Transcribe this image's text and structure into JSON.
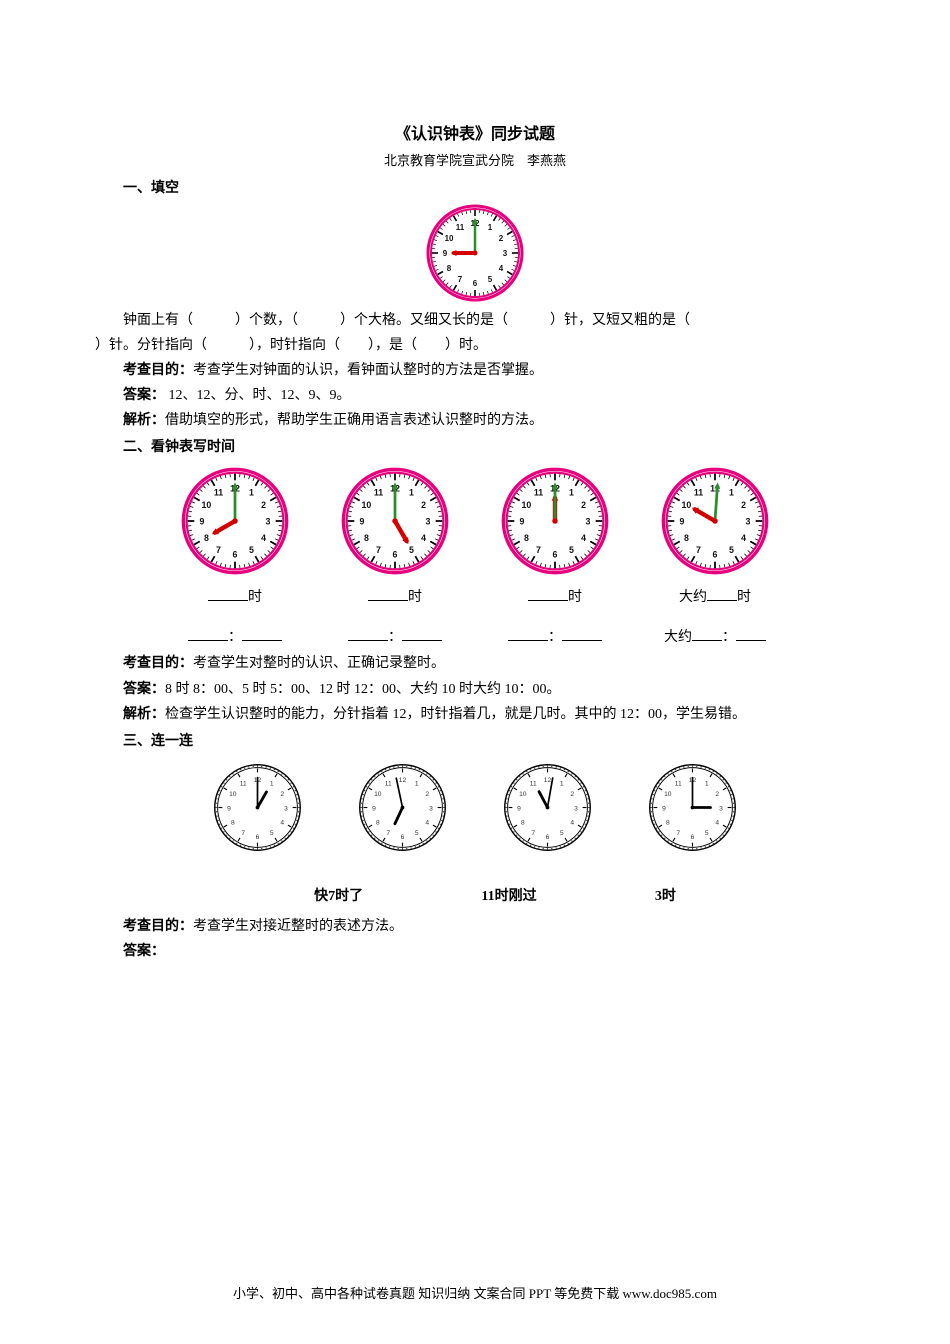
{
  "title": "《认识钟表》同步试题",
  "subtitle": "北京教育学院宣武分院　李燕燕",
  "s1": {
    "heading": "一、填空",
    "clock": {
      "type": "analog-clock",
      "hour_hand_angle": 270,
      "minute_hand_angle": 0,
      "face_border": "#e6007e",
      "hand_hour_color": "#d40000",
      "hand_min_color": "#2a8f2a",
      "tick_color": "#000000",
      "number_color": "#111111",
      "bg": "#ffffff",
      "size": 100
    },
    "q_line1": "钟面上有（　　　）个数，（　　　）个大格。又细又长的是（　　　）针，又短又粗的是（",
    "q_line2": "）针。分针指向（　　　），时针指向（　　），是（　　）时。",
    "objective_label": "考查目的：",
    "objective": "考查学生对钟面的认识，看钟面认整时的方法是否掌握。",
    "answer_label": "答案：",
    "answer": " 12、12、分、时、12、9、9。",
    "analysis_label": "解析：",
    "analysis": "借助填空的形式，帮助学生正确用语言表述认识整时的方法。"
  },
  "s2": {
    "heading": "二、看钟表写时间",
    "clocks": [
      {
        "hour_hand_angle": 240,
        "minute_hand_angle": 0,
        "label1_left": "",
        "label1_right": "时",
        "label2_mid": "：",
        "label2_left": "",
        "label2_right": ""
      },
      {
        "hour_hand_angle": 150,
        "minute_hand_angle": 0,
        "label1_left": "",
        "label1_right": "时",
        "label2_mid": "：",
        "label2_left": "",
        "label2_right": ""
      },
      {
        "hour_hand_angle": 0,
        "minute_hand_angle": 0,
        "label1_left": "",
        "label1_right": "时",
        "label2_mid": "：",
        "label2_left": "",
        "label2_right": ""
      },
      {
        "hour_hand_angle": 300,
        "minute_hand_angle": 4,
        "label1_prefix": "大约",
        "label1_right": "时",
        "label2_prefix": "大约",
        "label2_mid": "：",
        "label2_right": ""
      }
    ],
    "clock_style": {
      "face_border": "#e6007e",
      "hand_hour_color": "#d40000",
      "hand_min_color": "#2a8f2a",
      "tick_color": "#000000",
      "number_color": "#111111",
      "bg": "#ffffff",
      "size": 110
    },
    "objective_label": "考查目的：",
    "objective": "考查学生对整时的认识、正确记录整时。",
    "answer_label": "答案：",
    "answer": "8 时 8：00、5 时 5：00、12 时 12：00、大约 10 时大约 10：00。",
    "analysis_label": "解析：",
    "analysis": "检查学生认识整时的能力，分针指着 12，时针指着几，就是几时。其中的 12：00，学生易错。"
  },
  "s3": {
    "heading": "三、连一连",
    "clocks": [
      {
        "hour_hand_angle": 30,
        "minute_hand_angle": 0
      },
      {
        "hour_hand_angle": 205,
        "minute_hand_angle": 348
      },
      {
        "hour_hand_angle": 332,
        "minute_hand_angle": 10
      },
      {
        "hour_hand_angle": 90,
        "minute_hand_angle": 0
      }
    ],
    "clock_style": {
      "face_border": "#000000",
      "hand_color": "#000000",
      "tick_color": "#000000",
      "number_color": "#333333",
      "bg": "#ffffff",
      "size": 95
    },
    "labels": [
      "快7时了",
      "11时刚过",
      "3时"
    ],
    "objective_label": "考查目的：",
    "objective": "考查学生对接近整时的表述方法。",
    "answer_label": "答案："
  },
  "footer": "小学、初中、高中各种试卷真题 知识归纳 文案合同 PPT 等免费下载 www.doc985.com"
}
